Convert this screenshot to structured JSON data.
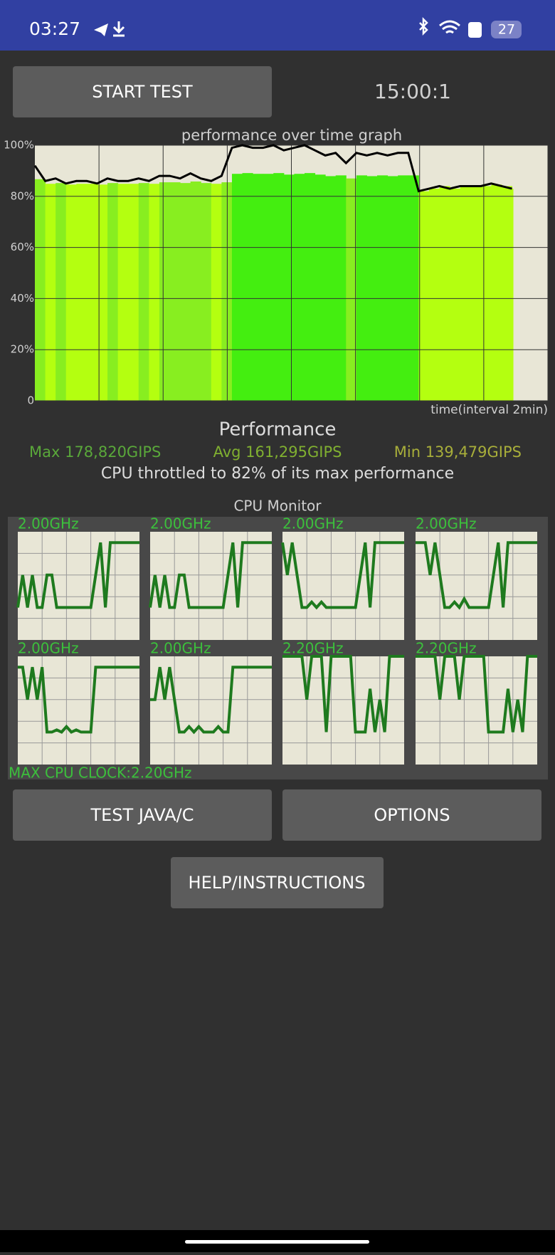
{
  "status_bar": {
    "time": "03:27",
    "battery": "27"
  },
  "buttons": {
    "start_test": "START TEST",
    "test_java": "TEST JAVA/C",
    "options": "OPTIONS",
    "help": "HELP/INSTRUCTIONS"
  },
  "timer": "15:00:1",
  "performance_graph": {
    "title": "performance over time graph",
    "yticks": [
      0,
      {
        "value": 20,
        "label": "20%"
      },
      {
        "value": 40,
        "label": "40%"
      },
      {
        "value": 60,
        "label": "60%"
      },
      {
        "value": 80,
        "label": "80%"
      },
      {
        "value": 100,
        "label": "100%"
      }
    ],
    "x_label": "time(interval 2min)",
    "values": [
      92,
      86,
      87,
      85,
      86,
      86,
      85,
      87,
      86,
      86,
      87,
      86,
      88,
      88,
      87,
      89,
      87,
      86,
      88,
      99,
      100,
      99,
      99,
      100,
      98,
      99,
      100,
      98,
      96,
      97,
      93,
      97,
      96,
      97,
      96,
      97,
      97,
      82,
      83,
      84,
      83,
      84,
      84,
      84,
      85,
      84,
      83
    ]
  },
  "summary": {
    "heading": "Performance",
    "max": "Max 178,820GIPS",
    "avg": "Avg 161,295GIPS",
    "min": "Min 139,479GIPS",
    "throttled": "CPU throttled to 82% of its max performance"
  },
  "cpu_monitor": {
    "title": "CPU Monitor",
    "cores": [
      {
        "label": "2.00GHz",
        "values": [
          30,
          60,
          30,
          60,
          30,
          30,
          60,
          60,
          30,
          30,
          30,
          30,
          30,
          30,
          30,
          30,
          60,
          90,
          30,
          90,
          90,
          90,
          90,
          90,
          90,
          90
        ]
      },
      {
        "label": "2.00GHz",
        "values": [
          30,
          60,
          30,
          60,
          30,
          30,
          60,
          60,
          30,
          30,
          30,
          30,
          30,
          30,
          30,
          30,
          60,
          90,
          30,
          90,
          90,
          90,
          90,
          90,
          90,
          90
        ]
      },
      {
        "label": "2.00GHz",
        "values": [
          90,
          60,
          90,
          60,
          30,
          30,
          35,
          30,
          35,
          30,
          30,
          30,
          30,
          30,
          30,
          30,
          60,
          90,
          30,
          90,
          90,
          90,
          90,
          90,
          90,
          90
        ]
      },
      {
        "label": "2.00GHz",
        "values": [
          90,
          90,
          90,
          60,
          90,
          60,
          30,
          30,
          35,
          30,
          38,
          30,
          30,
          30,
          30,
          30,
          60,
          90,
          30,
          90,
          90,
          90,
          90,
          90,
          90,
          90
        ]
      },
      {
        "label": "2.00GHz",
        "values": [
          90,
          90,
          60,
          90,
          60,
          90,
          30,
          30,
          32,
          30,
          35,
          30,
          32,
          30,
          30,
          30,
          90,
          90,
          90,
          90,
          90,
          90,
          90,
          90,
          90,
          90
        ]
      },
      {
        "label": "2.00GHz",
        "values": [
          60,
          60,
          90,
          60,
          90,
          60,
          30,
          30,
          35,
          30,
          35,
          30,
          30,
          30,
          35,
          30,
          30,
          90,
          90,
          90,
          90,
          90,
          90,
          90,
          90,
          90
        ]
      },
      {
        "label": "2.20GHz",
        "values": [
          100,
          100,
          100,
          100,
          100,
          60,
          100,
          100,
          100,
          30,
          100,
          100,
          100,
          100,
          100,
          30,
          30,
          30,
          70,
          30,
          60,
          30,
          100,
          100,
          100,
          100
        ]
      },
      {
        "label": "2.20GHz",
        "values": [
          100,
          100,
          100,
          100,
          100,
          60,
          100,
          100,
          100,
          60,
          100,
          100,
          100,
          100,
          100,
          30,
          30,
          30,
          30,
          70,
          30,
          60,
          30,
          100,
          100,
          100
        ]
      }
    ],
    "max_clock": "MAX CPU CLOCK:2.20GHz"
  }
}
